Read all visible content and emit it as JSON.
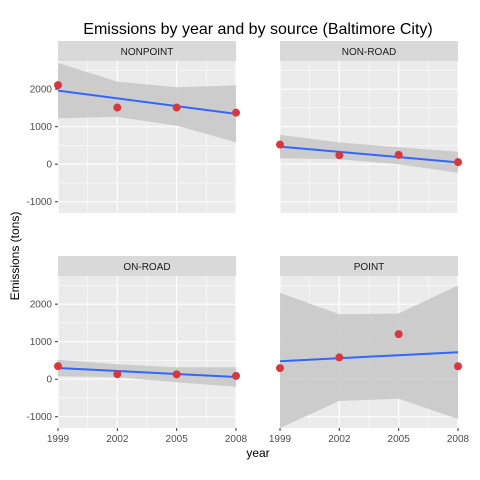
{
  "chart_data": {
    "type": "scatter",
    "title": "Emissions by year and by source (Baltimore City)",
    "xlabel": "year",
    "ylabel": "Emissions (tons)",
    "x_ticks": [
      1999,
      2002,
      2005,
      2008
    ],
    "y_ticks": [
      -1000,
      0,
      1000,
      2000
    ],
    "xlim": [
      1999,
      2008
    ],
    "ylim": [
      -1300,
      2750
    ],
    "colors": {
      "panel_bg": "#ebebeb",
      "grid": "#ffffff",
      "strip_bg": "#d9d9d9",
      "point": "#d7373f",
      "line": "#3366ff",
      "ribbon": "#c7c7c7"
    },
    "facets": [
      {
        "name": "NONPOINT",
        "points": [
          [
            1999,
            2108
          ],
          [
            2002,
            1510
          ],
          [
            2005,
            1510
          ],
          [
            2008,
            1373
          ]
        ],
        "fit": [
          [
            1999,
            1960
          ],
          [
            2008,
            1340
          ]
        ],
        "band_upper": [
          [
            1999,
            2700
          ],
          [
            2002,
            2200
          ],
          [
            2005,
            2050
          ],
          [
            2008,
            2100
          ]
        ],
        "band_lower": [
          [
            1999,
            1220
          ],
          [
            2002,
            1260
          ],
          [
            2005,
            1030
          ],
          [
            2008,
            580
          ]
        ]
      },
      {
        "name": "NON-ROAD",
        "points": [
          [
            1999,
            523
          ],
          [
            2002,
            241
          ],
          [
            2005,
            249
          ],
          [
            2008,
            55
          ]
        ],
        "fit": [
          [
            1999,
            470
          ],
          [
            2008,
            50
          ]
        ],
        "band_upper": [
          [
            1999,
            780
          ],
          [
            2002,
            580
          ],
          [
            2005,
            450
          ],
          [
            2008,
            330
          ]
        ],
        "band_lower": [
          [
            1999,
            160
          ],
          [
            2002,
            130
          ],
          [
            2005,
            0
          ],
          [
            2008,
            -230
          ]
        ]
      },
      {
        "name": "ON-ROAD",
        "points": [
          [
            1999,
            347
          ],
          [
            2002,
            134
          ],
          [
            2005,
            130
          ],
          [
            2008,
            88
          ]
        ],
        "fit": [
          [
            1999,
            300
          ],
          [
            2008,
            60
          ]
        ],
        "band_upper": [
          [
            1999,
            520
          ],
          [
            2002,
            400
          ],
          [
            2005,
            320
          ],
          [
            2008,
            320
          ]
        ],
        "band_lower": [
          [
            1999,
            80
          ],
          [
            2002,
            50
          ],
          [
            2005,
            -80
          ],
          [
            2008,
            -200
          ]
        ]
      },
      {
        "name": "POINT",
        "points": [
          [
            1999,
            297
          ],
          [
            2002,
            581
          ],
          [
            2005,
            1201
          ],
          [
            2008,
            345
          ]
        ],
        "fit": [
          [
            1999,
            480
          ],
          [
            2008,
            720
          ]
        ],
        "band_upper": [
          [
            1999,
            2300
          ],
          [
            2002,
            1730
          ],
          [
            2005,
            1750
          ],
          [
            2008,
            2500
          ]
        ],
        "band_lower": [
          [
            1999,
            -1300
          ],
          [
            2002,
            -580
          ],
          [
            2005,
            -520
          ],
          [
            2008,
            -1060
          ]
        ]
      }
    ]
  }
}
